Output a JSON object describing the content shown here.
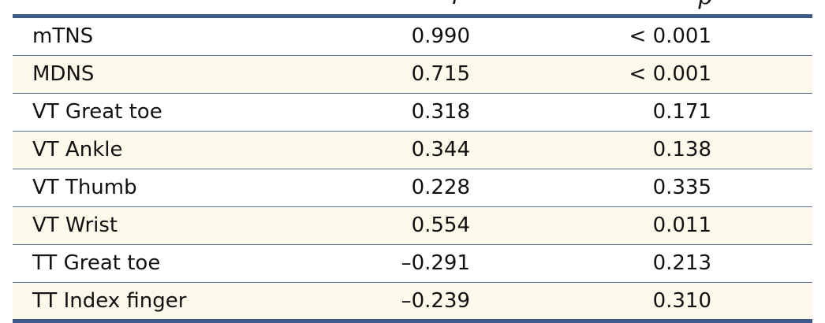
{
  "table": {
    "header": {
      "r_label": "r",
      "p_label": "p"
    },
    "rows": [
      {
        "label": "mTNS",
        "r": "0.990",
        "p": "< 0.001"
      },
      {
        "label": "MDNS",
        "r": "0.715",
        "p": "< 0.001"
      },
      {
        "label": "VT Great toe",
        "r": "0.318",
        "p": "0.171"
      },
      {
        "label": "VT Ankle",
        "r": "0.344",
        "p": "0.138"
      },
      {
        "label": "VT Thumb",
        "r": "0.228",
        "p": "0.335"
      },
      {
        "label": "VT Wrist",
        "r": "0.554",
        "p": "0.011"
      },
      {
        "label": "TT Great toe",
        "r": "–0.291",
        "p": "0.213"
      },
      {
        "label": "TT Index finger",
        "r": "–0.239",
        "p": "0.310"
      }
    ]
  }
}
